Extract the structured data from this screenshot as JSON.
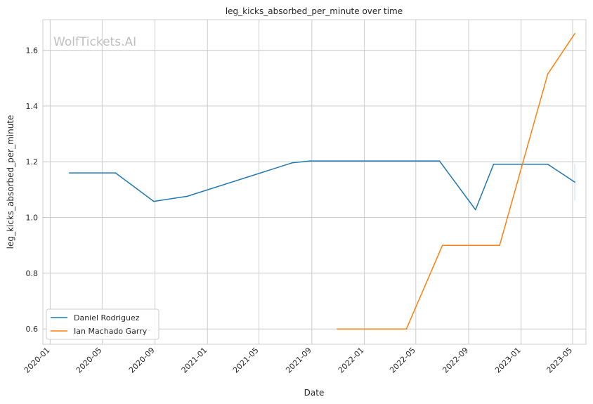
{
  "chart_data": {
    "type": "line",
    "title": "leg_kicks_absorbed_per_minute over time",
    "xlabel": "Date",
    "ylabel": "leg_kicks_absorbed_per_minute",
    "watermark": "WolfTickets.AI",
    "x_ticks": [
      "2020-01",
      "2020-05",
      "2020-09",
      "2021-01",
      "2021-05",
      "2021-09",
      "2022-01",
      "2022-05",
      "2022-09",
      "2023-01",
      "2023-05"
    ],
    "y_ticks": [
      "0.6",
      "0.8",
      "1.0",
      "1.2",
      "1.4",
      "1.6"
    ],
    "xlim": [
      "2019-12-15",
      "2023-06-01"
    ],
    "ylim": [
      0.545,
      1.71
    ],
    "grid": true,
    "legend_position": "lower-left",
    "series": [
      {
        "name": "Daniel Rodriguez",
        "color": "#1f77b4",
        "points": [
          {
            "x": "2020-02-15",
            "y": 1.16
          },
          {
            "x": "2020-06-01",
            "y": 1.16
          },
          {
            "x": "2020-08-29",
            "y": 1.058
          },
          {
            "x": "2020-11-15",
            "y": 1.076
          },
          {
            "x": "2021-07-17",
            "y": 1.196
          },
          {
            "x": "2021-08-28",
            "y": 1.203
          },
          {
            "x": "2022-06-25",
            "y": 1.203
          },
          {
            "x": "2022-09-17",
            "y": 1.028
          },
          {
            "x": "2022-10-29",
            "y": 1.191
          },
          {
            "x": "2023-03-04",
            "y": 1.191
          },
          {
            "x": "2023-05-06",
            "y": 1.127
          }
        ]
      },
      {
        "name": "Ian Machado Garry",
        "color": "#ff7f0e",
        "points": [
          {
            "x": "2021-10-30",
            "y": 0.6
          },
          {
            "x": "2022-04-09",
            "y": 0.6
          },
          {
            "x": "2022-07-02",
            "y": 0.9
          },
          {
            "x": "2022-11-12",
            "y": 0.9
          },
          {
            "x": "2023-03-04",
            "y": 1.515
          },
          {
            "x": "2023-05-06",
            "y": 1.66
          }
        ]
      }
    ]
  }
}
